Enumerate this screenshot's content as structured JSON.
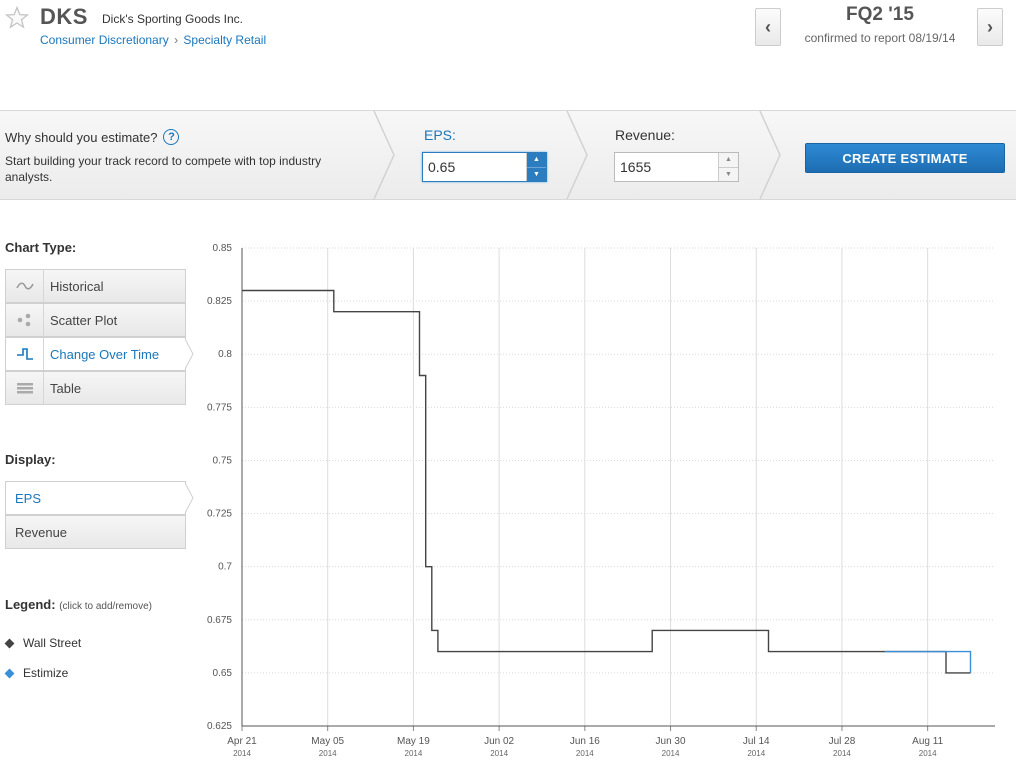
{
  "header": {
    "ticker": "DKS",
    "company": "Dick's Sporting Goods Inc.",
    "breadcrumb": {
      "sector": "Consumer Discretionary",
      "separator": "›",
      "industry": "Specialty Retail"
    },
    "icons": {
      "favorite": "star-icon",
      "prev": "chevron-left-icon",
      "next": "chevron-right-icon"
    },
    "nav": {
      "prev_glyph": "‹",
      "next_glyph": "›"
    },
    "quarter": "FQ2 '15",
    "confirmed": "confirmed to report 08/19/14"
  },
  "estimate": {
    "why_title": "Why should you estimate?",
    "help_glyph": "?",
    "why_desc": "Start building your track record to compete with top industry analysts.",
    "eps_label": "EPS:",
    "eps_value": "0.65",
    "revenue_label": "Revenue:",
    "revenue_value": "1655",
    "spin_up": "▲",
    "spin_down": "▼",
    "create_label": "CREATE ESTIMATE"
  },
  "chart_type": {
    "title": "Chart Type:",
    "items": [
      {
        "label": "Historical",
        "icon": "wave-icon",
        "active": false
      },
      {
        "label": "Scatter Plot",
        "icon": "scatter-icon",
        "active": false
      },
      {
        "label": "Change Over Time",
        "icon": "step-icon",
        "active": true
      },
      {
        "label": "Table",
        "icon": "table-icon",
        "active": false
      }
    ]
  },
  "display": {
    "title": "Display:",
    "items": [
      {
        "label": "EPS",
        "active": true
      },
      {
        "label": "Revenue",
        "active": false
      }
    ]
  },
  "legend": {
    "title": "Legend:",
    "hint": "(click to add/remove)",
    "items": [
      {
        "label": "Wall Street",
        "color": "#444444"
      },
      {
        "label": "Estimize",
        "color": "#3a8fd6"
      }
    ]
  },
  "chart_data": {
    "type": "line",
    "step": true,
    "ylim": [
      0.625,
      0.85
    ],
    "yticks": [
      "0.85",
      "0.825",
      "0.8",
      "0.775",
      "0.75",
      "0.725",
      "0.7",
      "0.675",
      "0.65",
      "0.625"
    ],
    "xlim": [
      "2014-04-21",
      "2014-08-22"
    ],
    "xticks": [
      {
        "date": "2014-04-21",
        "label": "Apr 21",
        "year": "2014"
      },
      {
        "date": "2014-05-05",
        "label": "May 05",
        "year": "2014"
      },
      {
        "date": "2014-05-19",
        "label": "May 19",
        "year": "2014"
      },
      {
        "date": "2014-06-02",
        "label": "Jun 02",
        "year": "2014"
      },
      {
        "date": "2014-06-16",
        "label": "Jun 16",
        "year": "2014"
      },
      {
        "date": "2014-06-30",
        "label": "Jun 30",
        "year": "2014"
      },
      {
        "date": "2014-07-14",
        "label": "Jul 14",
        "year": "2014"
      },
      {
        "date": "2014-07-28",
        "label": "Jul 28",
        "year": "2014"
      },
      {
        "date": "2014-08-11",
        "label": "Aug 11",
        "year": "2014"
      }
    ],
    "grid": true,
    "series": [
      {
        "name": "Wall Street",
        "color": "#444444",
        "points": [
          [
            "2014-04-21",
            0.83
          ],
          [
            "2014-05-06",
            0.83
          ],
          [
            "2014-05-06",
            0.82
          ],
          [
            "2014-05-20",
            0.82
          ],
          [
            "2014-05-20",
            0.79
          ],
          [
            "2014-05-21",
            0.79
          ],
          [
            "2014-05-21",
            0.7
          ],
          [
            "2014-05-22",
            0.7
          ],
          [
            "2014-05-22",
            0.67
          ],
          [
            "2014-05-23",
            0.67
          ],
          [
            "2014-05-23",
            0.66
          ],
          [
            "2014-06-27",
            0.66
          ],
          [
            "2014-06-27",
            0.67
          ],
          [
            "2014-07-16",
            0.67
          ],
          [
            "2014-07-16",
            0.66
          ],
          [
            "2014-08-14",
            0.66
          ],
          [
            "2014-08-14",
            0.65
          ],
          [
            "2014-08-18",
            0.65
          ]
        ]
      },
      {
        "name": "Estimize",
        "color": "#3a8fd6",
        "points": [
          [
            "2014-08-04",
            0.66
          ],
          [
            "2014-08-18",
            0.66
          ],
          [
            "2014-08-18",
            0.65
          ]
        ]
      }
    ]
  }
}
